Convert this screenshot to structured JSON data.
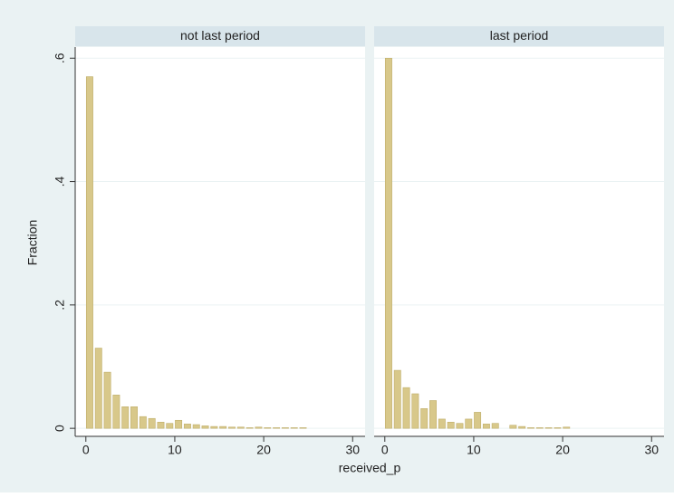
{
  "chart_data": [
    {
      "type": "histogram",
      "title": "not last period",
      "y_label": "Fraction",
      "x_label": "received_p",
      "bins": [
        0,
        1,
        2,
        3,
        4,
        5,
        6,
        7,
        8,
        9,
        10,
        11,
        12,
        13,
        14,
        15,
        16,
        17,
        18,
        19,
        20,
        21,
        22,
        23,
        24,
        25,
        26,
        27,
        28,
        29,
        30
      ],
      "values": [
        0.57,
        0.13,
        0.091,
        0.054,
        0.035,
        0.035,
        0.019,
        0.016,
        0.01,
        0.008,
        0.013,
        0.007,
        0.006,
        0.004,
        0.003,
        0.003,
        0.002,
        0.002,
        0.001,
        0.002,
        0.001,
        0.001,
        0.001,
        0.001,
        0.001,
        0,
        0,
        0,
        0,
        0
      ],
      "color": "#d8c88a",
      "xlim": [
        -1.2,
        31.4
      ],
      "ylim": [
        -0.013,
        0.618
      ],
      "xticks": [
        0,
        10,
        20,
        30
      ],
      "yticks": [
        0,
        {
          "value": 0.2,
          "label": ".2"
        },
        {
          "value": 0.4,
          "label": ".4"
        },
        {
          "value": 0.6,
          "label": ".6"
        }
      ],
      "grid": true
    },
    {
      "type": "histogram",
      "title": "last period",
      "bins": [
        0,
        1,
        2,
        3,
        4,
        5,
        6,
        7,
        8,
        9,
        10,
        11,
        12,
        13,
        14,
        15,
        16,
        17,
        18,
        19,
        20,
        21,
        22,
        23,
        24,
        25,
        26,
        27,
        28,
        29,
        30
      ],
      "values": [
        0.6,
        0.094,
        0.066,
        0.056,
        0.032,
        0.045,
        0.015,
        0.01,
        0.008,
        0.015,
        0.026,
        0.007,
        0.008,
        0,
        0.005,
        0.003,
        0.001,
        0.001,
        0.001,
        0.001,
        0.002,
        0,
        0,
        0,
        0,
        0,
        0,
        0,
        0,
        0
      ],
      "color": "#d8c88a",
      "xlim": [
        -1.2,
        31.4
      ],
      "ylim": [
        -0.013,
        0.618
      ],
      "xticks": [
        0,
        10,
        20,
        30
      ],
      "yticks": [
        0,
        {
          "value": 0.2,
          "label": ".2"
        },
        {
          "value": 0.4,
          "label": ".4"
        },
        {
          "value": 0.6,
          "label": ".6"
        }
      ],
      "grid": true
    }
  ]
}
